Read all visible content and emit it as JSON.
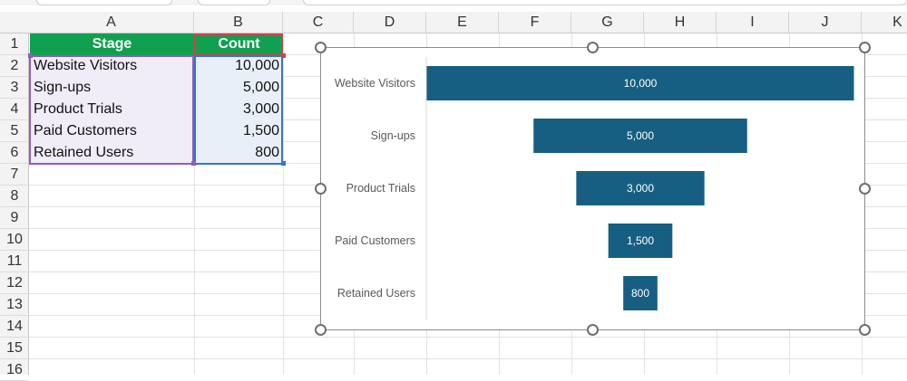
{
  "columns": [
    "A",
    "B",
    "C",
    "D",
    "E",
    "F",
    "G",
    "H",
    "I",
    "J",
    "K"
  ],
  "rows": [
    "1",
    "2",
    "3",
    "4",
    "5",
    "6",
    "7",
    "8",
    "9",
    "10",
    "11",
    "12",
    "13",
    "14",
    "15",
    "16"
  ],
  "table": {
    "headers": {
      "stage": "Stage",
      "count": "Count"
    },
    "rows": [
      {
        "stage": "Website Visitors",
        "count": "10,000"
      },
      {
        "stage": "Sign-ups",
        "count": "5,000"
      },
      {
        "stage": "Product Trials",
        "count": "3,000"
      },
      {
        "stage": "Paid Customers",
        "count": "1,500"
      },
      {
        "stage": "Retained Users",
        "count": "800"
      }
    ]
  },
  "colors": {
    "header_fill": "#10a050",
    "bar_fill": "#175f82",
    "stage_range_border": "#8e5cc2",
    "count_range_border": "#3b73c6",
    "header_range_border": "#d2404b"
  },
  "chart_data": {
    "type": "funnel",
    "categories": [
      "Website Visitors",
      "Sign-ups",
      "Product Trials",
      "Paid Customers",
      "Retained Users"
    ],
    "values": [
      10000,
      5000,
      3000,
      1500,
      800
    ],
    "data_labels": [
      "10,000",
      "5,000",
      "3,000",
      "1,500",
      "800"
    ],
    "title": "",
    "xlabel": "",
    "ylabel": "",
    "legend": "none",
    "grid": false,
    "selected": true
  }
}
